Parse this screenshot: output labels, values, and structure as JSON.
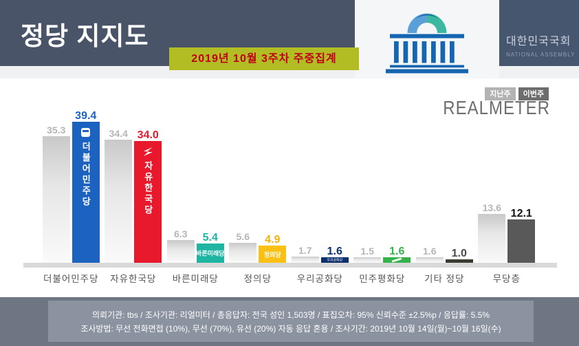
{
  "header": {
    "title": "정당 지지도",
    "banner": "2019년 10월 3주차 주중집계",
    "assembly_name": "대한민국국회",
    "assembly_name_en": "NATIONAL ASSEMBLY"
  },
  "legend": {
    "last_week": "지난주",
    "this_week": "이번주",
    "brand": "REALMETER"
  },
  "chart_data": {
    "type": "bar",
    "title": "정당 지지도",
    "subtitle": "2019년 10월 3주차 주중집계",
    "categories": [
      "더불어민주당",
      "자유한국당",
      "바른미래당",
      "정의당",
      "우리공화당",
      "민주평화당",
      "기타 정당",
      "무당층"
    ],
    "series": [
      {
        "name": "지난주",
        "values": [
          35.3,
          34.4,
          6.3,
          5.6,
          1.7,
          1.5,
          1.6,
          13.6
        ]
      },
      {
        "name": "이번주",
        "values": [
          39.4,
          34.0,
          5.4,
          4.9,
          1.6,
          1.6,
          1.0,
          12.1
        ]
      }
    ],
    "unit": "%",
    "ylim": [
      0,
      42
    ],
    "grid": false,
    "legend_position": "top-right"
  },
  "parties": [
    {
      "label": "더불어민주당",
      "last": "35.3",
      "current": "39.4",
      "color": "#1b62c1",
      "value_color": "#1b62c1",
      "inbar": "vertical",
      "logo": "minjoo"
    },
    {
      "label": "자유한국당",
      "last": "34.4",
      "current": "34.0",
      "color": "#e8192c",
      "value_color": "#e8192c",
      "inbar": "vertical",
      "logo": "lkp"
    },
    {
      "label": "바른미래당",
      "last": "6.3",
      "current": "5.4",
      "color": "#1fb5a3",
      "value_color": "#1fb5a3",
      "inbar": "chip"
    },
    {
      "label": "정의당",
      "last": "5.6",
      "current": "4.9",
      "color": "#fac014",
      "value_color": "#f0b30a",
      "inbar": "chip"
    },
    {
      "label": "우리공화당",
      "last": "1.7",
      "current": "1.6",
      "color": "#0c2f6e",
      "value_color": "#0c2f6e",
      "inbar": "tiny"
    },
    {
      "label": "민주평화당",
      "last": "1.5",
      "current": "1.6",
      "color": "#35b24a",
      "value_color": "#35b24a",
      "inbar": "swoosh"
    },
    {
      "label": "기타 정당",
      "last": "1.6",
      "current": "1.0",
      "color": "#3c3c32",
      "value_color": "#4a4a4a",
      "inbar": "none"
    },
    {
      "label": "무당층",
      "last": "13.6",
      "current": "12.1",
      "color": "#595959",
      "value_color": "#111111",
      "inbar": "none"
    }
  ],
  "footer": {
    "line1": "의뢰기관:  tbs  /  조사기관:  리얼미터  /  총응답자:  전국 성인 1,503명  /  표집오차:  95% 신뢰수준 ±2.5%p  /  응답률:  5.5%",
    "line2": "조사방법:  무선 전화면접 (10%), 무선 (70%), 유선 (20%)  자동 응답 혼용  /  조사기간:  2019년 10월 14일(월)~10월 16일(수)"
  }
}
